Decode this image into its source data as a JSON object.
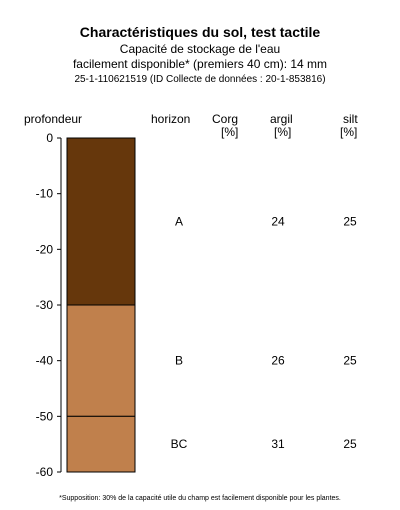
{
  "title": "Charactéristiques du sol, test tactile",
  "subtitle_line1": "Capacité de stockage de l'eau",
  "subtitle_line2": "facilement disponible* (premiers 40 cm): 14 mm",
  "subtitle_line3": "25-1-110621519 (ID Collecte de données : 20-1-853816)",
  "headers": {
    "depth": "profondeur",
    "horizon": "horizon",
    "corg": "Corg",
    "corg_unit": "[%]",
    "argil": "argil",
    "argil_unit": "[%]",
    "silt": "silt",
    "silt_unit": "[%]"
  },
  "footnote": "*Supposition: 30% de la capacité utile du champ est facilement disponible pour les plantes.",
  "chart_data": {
    "type": "table",
    "ylim": [
      -60,
      0
    ],
    "yticks": [
      "0",
      "-10",
      "-20",
      "-30",
      "-40",
      "-50",
      "-60"
    ],
    "ytick_values": [
      0,
      -10,
      -20,
      -30,
      -40,
      -50,
      -60
    ],
    "horizons": [
      {
        "name": "A",
        "top": 0,
        "bottom": -30,
        "color": "#66370c",
        "corg": "",
        "argil": "24",
        "silt": "25"
      },
      {
        "name": "B",
        "top": -30,
        "bottom": -50,
        "color": "#c0804c",
        "corg": "",
        "argil": "26",
        "silt": "25"
      },
      {
        "name": "BC",
        "top": -50,
        "bottom": -60,
        "color": "#c0804c",
        "corg": "",
        "argil": "31",
        "silt": "25"
      }
    ]
  }
}
